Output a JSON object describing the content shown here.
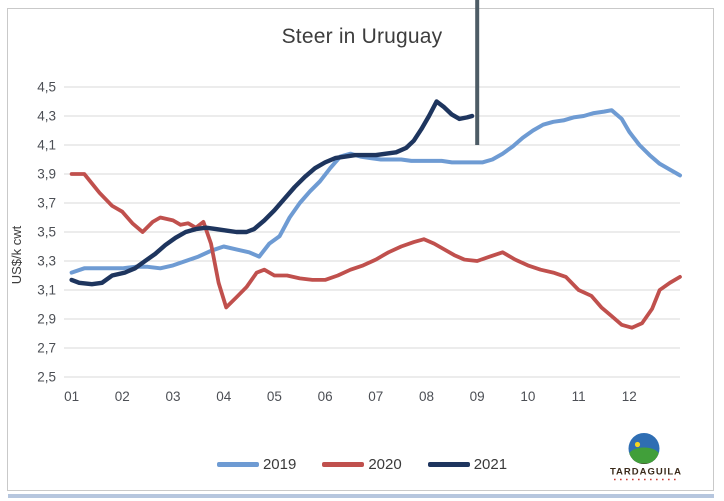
{
  "title": "Steer in Uruguay",
  "colors": {
    "series_2019": "#6e9bd3",
    "series_2020": "#c0504d",
    "series_2021": "#1e355e",
    "grid": "#d8d8d8",
    "annotation": "#4d5c66",
    "frame_border": "#c9c9c9",
    "bottom_bar": "#b6c6de",
    "tick_text": "#4c4f55",
    "title_text": "#3d3d3d"
  },
  "legend": {
    "items": [
      {
        "label": "2019"
      },
      {
        "label": "2020"
      },
      {
        "label": "2021"
      }
    ]
  },
  "branding": {
    "logo_icon": "globe-hill-logo-icon",
    "logo_text": "TARDAGUILA"
  },
  "chart_data": {
    "type": "line",
    "title": "Steer in Uruguay",
    "xlabel": "",
    "ylabel": "US$/k cwt",
    "grid": "horizontal",
    "legend_position": "bottom",
    "xlim": [
      0.85,
      13.0
    ],
    "ylim": [
      2.5,
      4.5
    ],
    "x_ticks": [
      1,
      2,
      3,
      4,
      5,
      6,
      7,
      8,
      9,
      10,
      11,
      12
    ],
    "x_tick_labels": [
      "01",
      "02",
      "03",
      "04",
      "05",
      "06",
      "07",
      "08",
      "09",
      "10",
      "11",
      "12"
    ],
    "y_ticks": [
      2.5,
      2.7,
      2.9,
      3.1,
      3.3,
      3.5,
      3.7,
      3.9,
      4.1,
      4.3,
      4.5
    ],
    "y_tick_labels": [
      "2,5",
      "2,7",
      "2,9",
      "3,1",
      "3,3",
      "3,5",
      "3,7",
      "3,9",
      "4,1",
      "4,3",
      "4,5"
    ],
    "annotation_line": {
      "x_month": 9.0,
      "note": "vertical marker at month 09"
    },
    "series": [
      {
        "name": "2019",
        "color": "#6e9bd3",
        "width": 4.0,
        "x": [
          1.0,
          1.25,
          1.5,
          1.75,
          2.0,
          2.25,
          2.5,
          2.75,
          3.0,
          3.25,
          3.5,
          3.75,
          4.0,
          4.25,
          4.5,
          4.7,
          4.9,
          5.1,
          5.3,
          5.5,
          5.7,
          5.9,
          6.1,
          6.3,
          6.5,
          6.7,
          6.9,
          7.1,
          7.3,
          7.5,
          7.7,
          7.9,
          8.1,
          8.3,
          8.5,
          8.7,
          8.9,
          9.1,
          9.3,
          9.5,
          9.7,
          9.9,
          10.1,
          10.3,
          10.5,
          10.7,
          10.9,
          11.1,
          11.3,
          11.5,
          11.65,
          11.85,
          12.0,
          12.2,
          12.4,
          12.6,
          12.8,
          13.0
        ],
        "y": [
          3.22,
          3.25,
          3.25,
          3.25,
          3.25,
          3.26,
          3.26,
          3.25,
          3.27,
          3.3,
          3.33,
          3.37,
          3.4,
          3.38,
          3.36,
          3.33,
          3.42,
          3.47,
          3.6,
          3.7,
          3.78,
          3.85,
          3.94,
          4.02,
          4.04,
          4.02,
          4.01,
          4.0,
          4.0,
          4.0,
          3.99,
          3.99,
          3.99,
          3.99,
          3.98,
          3.98,
          3.98,
          3.98,
          4.0,
          4.04,
          4.09,
          4.15,
          4.2,
          4.24,
          4.26,
          4.27,
          4.29,
          4.3,
          4.32,
          4.33,
          4.34,
          4.28,
          4.19,
          4.1,
          4.03,
          3.97,
          3.93,
          3.89
        ]
      },
      {
        "name": "2020",
        "color": "#c0504d",
        "width": 3.8,
        "x": [
          1.0,
          1.25,
          1.55,
          1.8,
          2.0,
          2.2,
          2.4,
          2.6,
          2.75,
          3.0,
          3.15,
          3.3,
          3.45,
          3.6,
          3.75,
          3.9,
          4.05,
          4.25,
          4.45,
          4.65,
          4.8,
          5.0,
          5.25,
          5.5,
          5.75,
          6.0,
          6.25,
          6.5,
          6.75,
          7.0,
          7.25,
          7.5,
          7.75,
          7.95,
          8.15,
          8.35,
          8.55,
          8.75,
          9.0,
          9.25,
          9.5,
          9.75,
          10.0,
          10.25,
          10.5,
          10.75,
          11.0,
          11.25,
          11.45,
          11.65,
          11.85,
          12.05,
          12.25,
          12.45,
          12.6,
          12.8,
          13.0
        ],
        "y": [
          3.9,
          3.9,
          3.77,
          3.68,
          3.64,
          3.56,
          3.5,
          3.57,
          3.6,
          3.58,
          3.55,
          3.56,
          3.53,
          3.57,
          3.42,
          3.15,
          2.98,
          3.05,
          3.12,
          3.22,
          3.24,
          3.2,
          3.2,
          3.18,
          3.17,
          3.17,
          3.2,
          3.24,
          3.27,
          3.31,
          3.36,
          3.4,
          3.43,
          3.45,
          3.42,
          3.38,
          3.34,
          3.31,
          3.3,
          3.33,
          3.36,
          3.31,
          3.27,
          3.24,
          3.22,
          3.19,
          3.1,
          3.06,
          2.98,
          2.92,
          2.86,
          2.84,
          2.87,
          2.97,
          3.1,
          3.15,
          3.19
        ]
      },
      {
        "name": "2021",
        "color": "#1e355e",
        "width": 4.4,
        "x": [
          1.0,
          1.15,
          1.4,
          1.6,
          1.8,
          2.05,
          2.25,
          2.45,
          2.65,
          2.85,
          3.05,
          3.25,
          3.45,
          3.65,
          3.85,
          4.05,
          4.25,
          4.45,
          4.6,
          4.8,
          5.0,
          5.2,
          5.4,
          5.6,
          5.8,
          6.0,
          6.2,
          6.4,
          6.6,
          6.8,
          7.0,
          7.2,
          7.4,
          7.6,
          7.75,
          7.9,
          8.05,
          8.2,
          8.35,
          8.5,
          8.65,
          8.8,
          8.9
        ],
        "y": [
          3.17,
          3.15,
          3.14,
          3.15,
          3.2,
          3.22,
          3.25,
          3.3,
          3.35,
          3.41,
          3.46,
          3.5,
          3.52,
          3.53,
          3.52,
          3.51,
          3.5,
          3.5,
          3.52,
          3.58,
          3.65,
          3.73,
          3.81,
          3.88,
          3.94,
          3.98,
          4.01,
          4.02,
          4.03,
          4.03,
          4.03,
          4.04,
          4.05,
          4.08,
          4.13,
          4.21,
          4.3,
          4.4,
          4.36,
          4.31,
          4.28,
          4.29,
          4.3
        ]
      }
    ]
  }
}
